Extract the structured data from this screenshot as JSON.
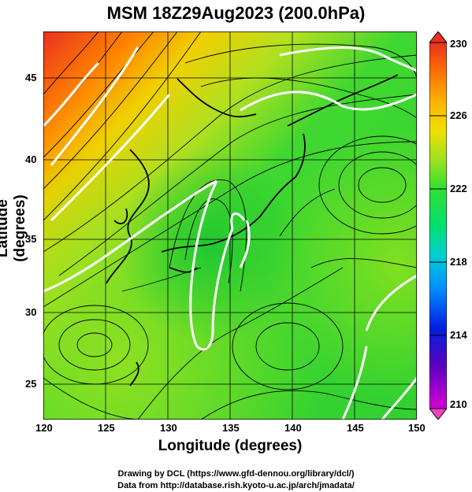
{
  "title": "MSM 18Z29Aug2023 (200.0hPa)",
  "xlabel": "Longitude (degrees)",
  "ylabel": "Latitude  (degrees)",
  "credits": [
    "Drawing by DCL (https://www.gfd-dennou.org/library/dcl/)",
    "Data from http://database.rish.kyoto-u.ac.jp/arch/jmadata/"
  ],
  "x_ticks": [
    "120",
    "125",
    "130",
    "135",
    "140",
    "145",
    "150"
  ],
  "y_ticks": [
    "25",
    "30",
    "35",
    "40",
    "45"
  ],
  "colorbar": {
    "ticks": [
      "230",
      "226",
      "222",
      "218",
      "214",
      "210"
    ],
    "min": 210,
    "max": 230,
    "colors": [
      "#d400d4",
      "#5a00c0",
      "#0020e0",
      "#0090ff",
      "#00d0d0",
      "#00e070",
      "#30e030",
      "#a0e020",
      "#f0e000",
      "#ffb000",
      "#ff7000",
      "#e83020"
    ]
  },
  "map": {
    "lon_range": [
      120,
      150
    ],
    "lat_range": [
      22.5,
      48
    ],
    "field": "temperature (K) with streamlines",
    "colors": {
      "warm": "#e83020",
      "mid": "#f0e000",
      "green": "#30d030",
      "light_green": "#70e030"
    }
  }
}
